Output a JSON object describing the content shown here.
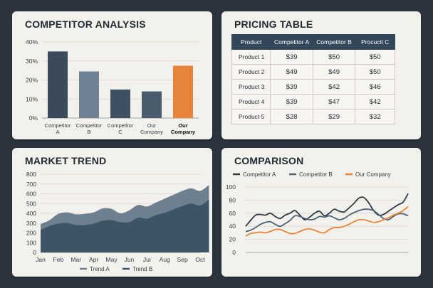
{
  "colors": {
    "background": "#2b343d",
    "card": "#f3f1ec",
    "dark_slate": "#3a4b5c",
    "grey_blue": "#6e7f8f",
    "orange": "#e8843a",
    "header": "#34465a"
  },
  "chart_data": [
    {
      "type": "bar",
      "title": "COMPETITOR ANALYSIS",
      "categories": [
        "Competitor A",
        "Competitor B",
        "Competitor C",
        "Our Company"
      ],
      "category_lines": [
        [
          "Competitor",
          "A"
        ],
        [
          "Competitor",
          "B"
        ],
        [
          "Competitor",
          "C"
        ],
        [
          "Our",
          "Company"
        ],
        [
          "Our",
          "Company"
        ]
      ],
      "x": [
        "Competitor A",
        "Competitor B",
        "Competitor C",
        "Our Company",
        "Our Company"
      ],
      "values": [
        35,
        24.5,
        15,
        14,
        27.5
      ],
      "bar_colors": [
        "#3a4a5b",
        "#6f8192",
        "#3f5062",
        "#4a5b6c",
        "#e8843a"
      ],
      "highlight_index": 4,
      "ylim": [
        0,
        40
      ],
      "yticks": [
        "0%",
        "10%",
        "20%",
        "30%",
        "40%"
      ],
      "ytick_values": [
        0,
        10,
        20,
        30,
        40
      ],
      "grid": true
    },
    {
      "type": "table",
      "title": "PRICING TABLE",
      "columns": [
        "Product",
        "Competitor A",
        "Competitor B",
        "Procucit C"
      ],
      "rows": [
        [
          "Product 1",
          "$39",
          "$50",
          "$50"
        ],
        [
          "Product 2",
          "$49",
          "$49",
          "$50"
        ],
        [
          "Product 3",
          "$39",
          "$42",
          "$46"
        ],
        [
          "Product 4",
          "$39",
          "$47",
          "$42"
        ],
        [
          "Product 5",
          "$28",
          "$29",
          "$32"
        ]
      ]
    },
    {
      "type": "area",
      "title": "MARKET TREND",
      "categories": [
        "Jan",
        "Feb",
        "Mar",
        "Apr",
        "May",
        "Jun",
        "Jui",
        "Aug",
        "Sep",
        "Oct"
      ],
      "ylim": [
        0,
        800
      ],
      "yticks": [
        "0",
        "100",
        "200",
        "300",
        "400",
        "500",
        "600",
        "700",
        "800"
      ],
      "ytick_values": [
        0,
        100,
        200,
        300,
        400,
        500,
        600,
        700,
        800
      ],
      "series": [
        {
          "name": "Trend A",
          "color": "#6e7f8f",
          "x": [
            0,
            0.5,
            1,
            1.5,
            2,
            2.5,
            3,
            3.5,
            4,
            4.5,
            5,
            5.5,
            6,
            6.5,
            7,
            7.5,
            8,
            8.5,
            9,
            9.5
          ],
          "values": [
            290,
            330,
            395,
            410,
            390,
            395,
            410,
            450,
            445,
            400,
            430,
            485,
            470,
            510,
            550,
            590,
            630,
            655,
            630,
            690
          ]
        },
        {
          "name": "Trend B",
          "color": "#3d5366",
          "x": [
            0,
            0.5,
            1,
            1.5,
            2,
            2.5,
            3,
            3.5,
            4,
            4.5,
            5,
            5.5,
            6,
            6.5,
            7,
            7.5,
            8,
            8.5,
            9,
            9.5
          ],
          "values": [
            230,
            270,
            295,
            300,
            280,
            280,
            295,
            325,
            330,
            310,
            310,
            355,
            345,
            380,
            405,
            440,
            475,
            500,
            480,
            540
          ]
        }
      ],
      "legend": "bottom"
    },
    {
      "type": "line",
      "title": "COMPARISON",
      "ylim": [
        0,
        100
      ],
      "yticks": [
        "0",
        "20",
        "40",
        "60",
        "80",
        "100"
      ],
      "ytick_values": [
        0,
        20,
        40,
        60,
        80,
        100
      ],
      "x": [
        0,
        1,
        2,
        3,
        4,
        5,
        6,
        7,
        8,
        9,
        10,
        11,
        12,
        13,
        14,
        15,
        16,
        17,
        18,
        19,
        20,
        21,
        22,
        23,
        24,
        25,
        26,
        27,
        28,
        29,
        30,
        31,
        32,
        33
      ],
      "series": [
        {
          "name": "Competitor A",
          "color": "#2e3b47",
          "values": [
            40,
            49,
            57,
            58,
            57,
            60,
            55,
            52,
            57,
            60,
            64,
            57,
            50,
            54,
            60,
            63,
            56,
            60,
            66,
            63,
            62,
            68,
            75,
            83,
            84,
            76,
            64,
            57,
            58,
            63,
            68,
            73,
            77,
            90
          ]
        },
        {
          "name": "Competitor B",
          "color": "#4c6376",
          "values": [
            32,
            34,
            38,
            43,
            46,
            47,
            43,
            40,
            44,
            49,
            56,
            55,
            52,
            50,
            51,
            55,
            54,
            56,
            53,
            50,
            52,
            57,
            61,
            64,
            66,
            66,
            64,
            58,
            52,
            50,
            55,
            59,
            59,
            56
          ]
        },
        {
          "name": "Our Company",
          "color": "#e8843a",
          "values": [
            25,
            29,
            30,
            31,
            30,
            32,
            35,
            35,
            32,
            29,
            29,
            32,
            35,
            36,
            34,
            31,
            30,
            35,
            38,
            38,
            40,
            43,
            47,
            50,
            50,
            48,
            46,
            47,
            50,
            53,
            57,
            60,
            64,
            70
          ]
        }
      ],
      "legend": "top"
    }
  ]
}
